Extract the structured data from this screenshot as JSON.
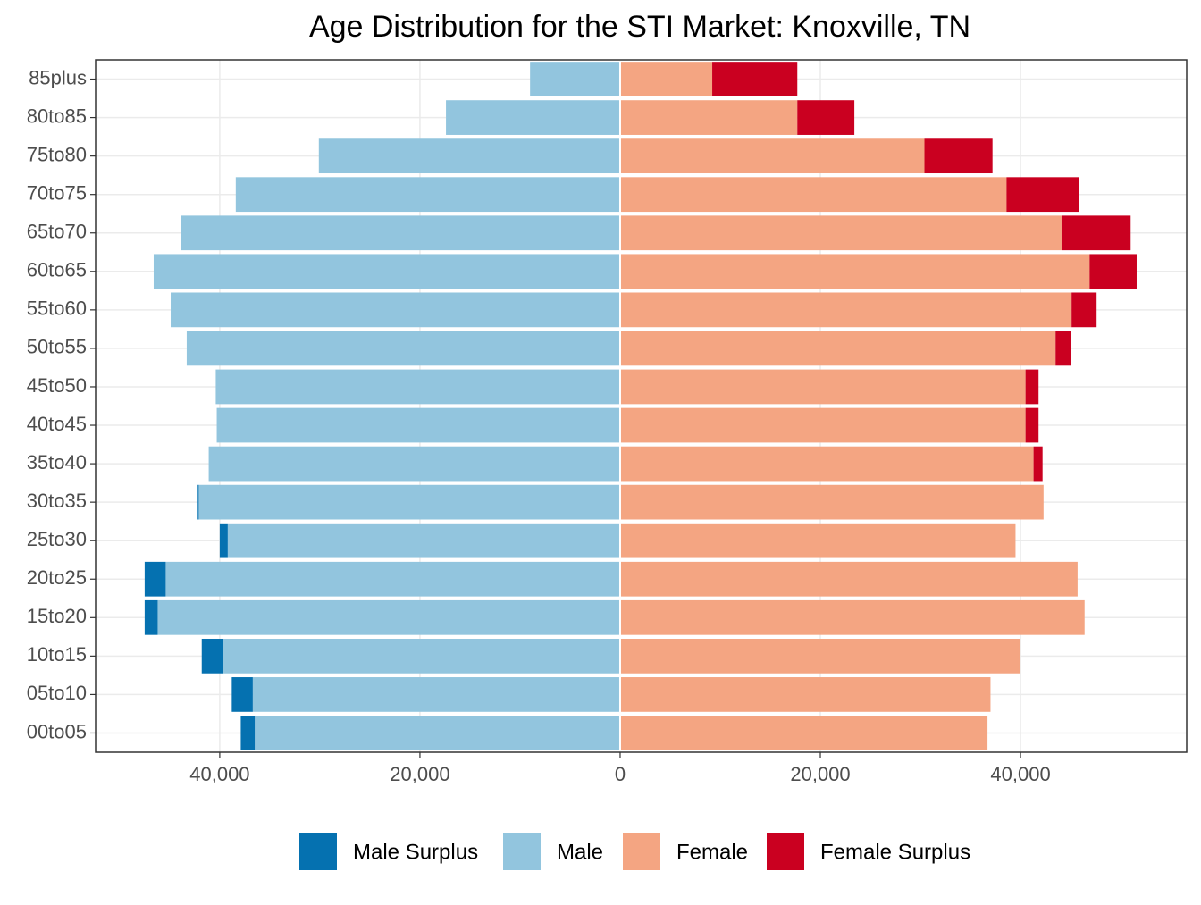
{
  "chart_data": {
    "type": "bar",
    "orientation": "horizontal",
    "stacked": true,
    "title": "Age Distribution for the STI Market: Knoxville, TN",
    "categories": [
      "85plus",
      "80to85",
      "75to80",
      "70to75",
      "65to70",
      "60to65",
      "55to60",
      "50to55",
      "45to50",
      "40to45",
      "35to40",
      "30to35",
      "25to30",
      "20to25",
      "15to20",
      "10to15",
      "05to10",
      "00to05"
    ],
    "series": [
      {
        "name": "Male Surplus",
        "color": "#0571b0",
        "values": [
          0,
          0,
          0,
          0,
          0,
          0,
          0,
          0,
          0,
          0,
          0,
          -100,
          -800,
          -2100,
          -1300,
          -2100,
          -2100,
          -1400
        ]
      },
      {
        "name": "Male",
        "color": "#92c5de",
        "values": [
          -9000,
          -17400,
          -30100,
          -38400,
          -43900,
          -46600,
          -44900,
          -43300,
          -40400,
          -40300,
          -41100,
          -42100,
          -39200,
          -45400,
          -46200,
          -39700,
          -36700,
          -36500
        ]
      },
      {
        "name": "Female",
        "color": "#f4a582",
        "values": [
          9200,
          17700,
          30400,
          38600,
          44100,
          46900,
          45100,
          43500,
          40500,
          40500,
          41300,
          42300,
          39500,
          45700,
          46400,
          40000,
          37000,
          36700
        ]
      },
      {
        "name": "Female Surplus",
        "color": "#ca0020",
        "values": [
          8500,
          5700,
          6800,
          7200,
          6900,
          4700,
          2500,
          1500,
          1300,
          1300,
          900,
          0,
          0,
          0,
          0,
          0,
          0,
          0
        ]
      }
    ],
    "xlim": [
      -52400,
      56600
    ],
    "xticks": [
      {
        "value": -40000,
        "label": "40,000"
      },
      {
        "value": -20000,
        "label": "20,000"
      },
      0,
      {
        "value": 20000,
        "label": "20,000"
      },
      {
        "value": 40000,
        "label": "40,000"
      }
    ],
    "grid": true,
    "legend": "bottom"
  }
}
